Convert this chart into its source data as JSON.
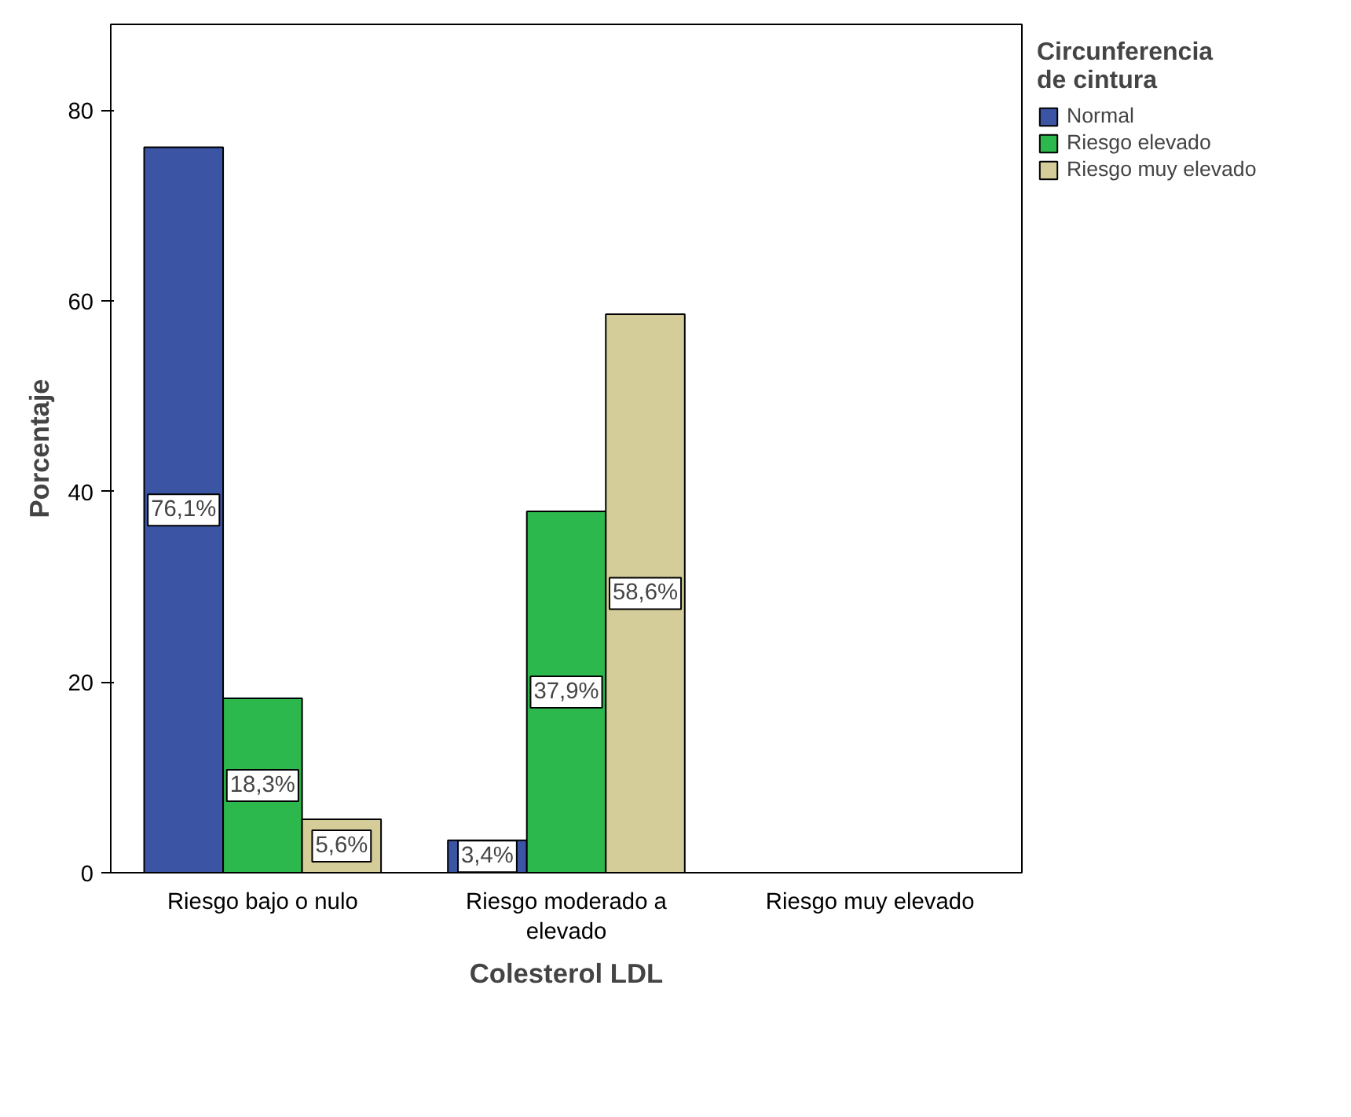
{
  "chart_data": {
    "type": "bar",
    "xlabel": "Colesterol LDL",
    "ylabel": "Porcentaje",
    "legend_title": "Circunferencia de cintura",
    "categories": [
      "Riesgo bajo o nulo",
      "Riesgo moderado a elevado",
      "Riesgo muy elevado"
    ],
    "series": [
      {
        "name": "Normal",
        "color": "#3b54a4",
        "values": [
          76.1,
          3.4,
          null
        ],
        "value_labels": [
          "76,1%",
          "3,4%",
          null
        ]
      },
      {
        "name": "Riesgo elevado",
        "color": "#2db84d",
        "values": [
          18.3,
          37.9,
          null
        ],
        "value_labels": [
          "18,3%",
          "37,9%",
          null
        ]
      },
      {
        "name": "Riesgo muy elevado",
        "color": "#d4cd9a",
        "values": [
          5.6,
          58.6,
          null
        ],
        "value_labels": [
          "5,6%",
          "58,6%",
          null
        ]
      }
    ],
    "ylim": [
      0,
      89
    ],
    "yticks": [
      0,
      20,
      40,
      60,
      80
    ],
    "grid": false,
    "legend": "top right"
  }
}
